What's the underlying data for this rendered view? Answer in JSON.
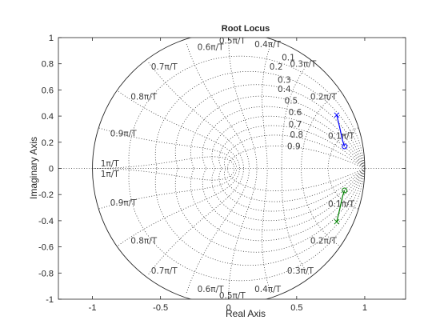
{
  "chart_data": {
    "type": "line",
    "title": "Root Locus",
    "xlabel": "Real Axis",
    "ylabel": "Imaginary Axis",
    "xlim": [
      -1.25,
      1.3
    ],
    "ylim": [
      -1,
      1
    ],
    "x_ticks": [
      "-1",
      "-0.5",
      "0",
      "0.5",
      "1"
    ],
    "x_tick_values": [
      -1,
      -0.5,
      0,
      0.5,
      1
    ],
    "y_ticks": [
      "1",
      "0.8",
      "0.6",
      "0.4",
      "0.2",
      "0",
      "-0.2",
      "-0.4",
      "-0.6",
      "-0.8",
      "-1"
    ],
    "y_tick_values": [
      1,
      0.8,
      0.6,
      0.4,
      0.2,
      0,
      -0.2,
      -0.4,
      -0.6,
      -0.8,
      -1
    ],
    "grid": true,
    "grid_kind": "z-plane (damping ratio and natural frequency)",
    "damping_labels": [
      "0.1",
      "0.2",
      "0.3",
      "0.4",
      "0.5",
      "0.6",
      "0.7",
      "0.8",
      "0.9"
    ],
    "damping_values": [
      0.1,
      0.2,
      0.3,
      0.4,
      0.5,
      0.6,
      0.7,
      0.8,
      0.9
    ],
    "frequency_labels_upper": [
      "0.1π/T",
      "0.2π/T",
      "0.3π/T",
      "0.4π/T",
      "0.5π/T",
      "0.6π/T",
      "0.7π/T",
      "0.8π/T",
      "0.9π/T",
      "1π/T"
    ],
    "frequency_labels_lower": [
      "0.1π/T",
      "0.2π/T",
      "0.3π/T",
      "0.4π/T",
      "0.5π/T",
      "0.6π/T",
      "0.7π/T",
      "0.8π/T",
      "0.9π/T",
      "1π/T"
    ],
    "frequency_values": [
      0.1,
      0.2,
      0.3,
      0.4,
      0.5,
      0.6,
      0.7,
      0.8,
      0.9,
      1.0
    ],
    "series": [
      {
        "color": "#0000ff",
        "x": [
          0.794,
          0.803,
          0.812,
          0.821,
          0.829,
          0.838,
          0.846,
          0.852
        ],
        "y": [
          0.408,
          0.37,
          0.33,
          0.29,
          0.25,
          0.21,
          0.185,
          0.168
        ]
      },
      {
        "color": "#008000",
        "x": [
          0.794,
          0.803,
          0.812,
          0.821,
          0.829,
          0.838,
          0.846,
          0.852
        ],
        "y": [
          -0.408,
          -0.37,
          -0.33,
          -0.29,
          -0.25,
          -0.21,
          -0.185,
          -0.168
        ]
      }
    ],
    "poles": [
      {
        "x": 0.794,
        "y": 0.408,
        "color": "#0000ff"
      },
      {
        "x": 0.794,
        "y": -0.408,
        "color": "#008000"
      }
    ],
    "zeros": [
      {
        "x": 0.852,
        "y": 0.168,
        "color": "#0000ff"
      },
      {
        "x": 0.852,
        "y": -0.168,
        "color": "#008000"
      }
    ]
  }
}
